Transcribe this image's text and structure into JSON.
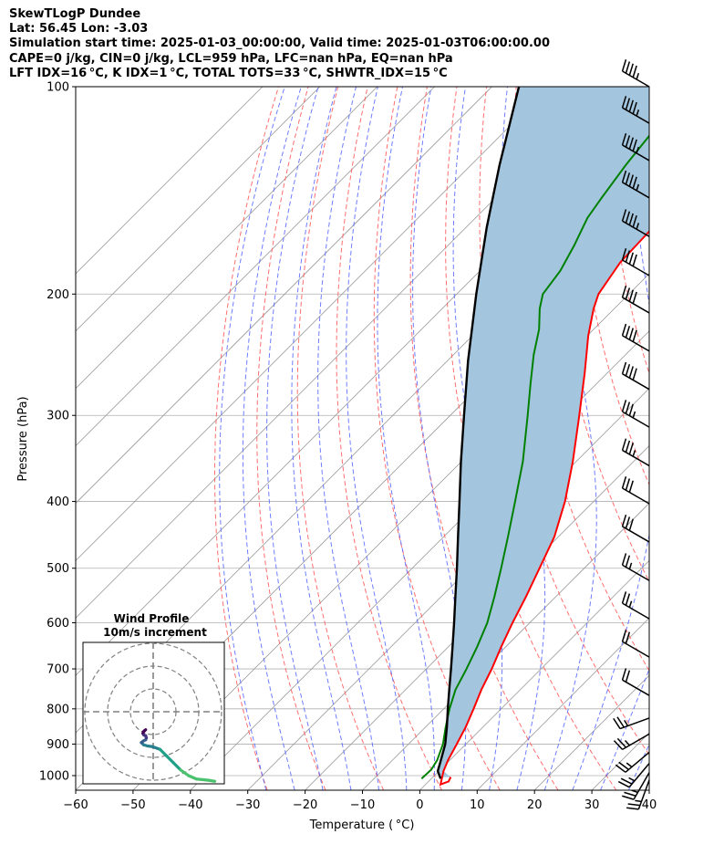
{
  "header": {
    "line1": "SkewTLogP Dundee",
    "line2": "Lat: 56.45   Lon: -3.03",
    "line3": "Simulation start time: 2025-01-03_00:00:00, Valid time: 2025-01-03T06:00:00.00",
    "line4": "CAPE=0 j/kg, CIN=0 j/kg, LCL=959 hPa, LFC=nan hPa, EQ=nan hPa",
    "line5": "LFT IDX=16 °C, K IDX=1 °C, TOTAL TOTS=33 °C, SHWTR_IDX=15 °C"
  },
  "chart_data": {
    "type": "line",
    "xlabel": "Temperature ( °C)",
    "ylabel": "Pressure (hPa)",
    "xlim": [
      -60,
      40
    ],
    "ylim": [
      1050,
      100
    ],
    "y_scale": "log",
    "x_ticks": [
      "−60",
      "−50",
      "−40",
      "−30",
      "−20",
      "−10",
      "0",
      "10",
      "20",
      "30",
      "40"
    ],
    "y_ticks": [
      "100",
      "200",
      "300",
      "400",
      "500",
      "600",
      "700",
      "800",
      "900",
      "1000"
    ],
    "grid": true,
    "colors": {
      "temperature": "#ff0000",
      "dewpoint": "#008000",
      "parcel": "#000000",
      "shade": "#a3c6de",
      "dry_adiabat": "#ff5555",
      "moist_adiabat": "#5566ff",
      "isotherm": "#999999"
    },
    "series": [
      {
        "name": "",
        "role": "temperature",
        "points": [
          [
            1005,
            3.1
          ],
          [
            1020,
            3.5
          ],
          [
            1030,
            2.6
          ],
          [
            985,
            0.8
          ],
          [
            950,
            -0.3
          ],
          [
            900,
            -1.6
          ],
          [
            850,
            -3.0
          ],
          [
            800,
            -4.8
          ],
          [
            750,
            -6.8
          ],
          [
            700,
            -8.6
          ],
          [
            650,
            -10.8
          ],
          [
            600,
            -13.0
          ],
          [
            550,
            -15.2
          ],
          [
            500,
            -17.8
          ],
          [
            450,
            -20.7
          ],
          [
            400,
            -25.0
          ],
          [
            350,
            -30.6
          ],
          [
            300,
            -37.5
          ],
          [
            260,
            -44.0
          ],
          [
            230,
            -49.8
          ],
          [
            210,
            -53.6
          ],
          [
            200,
            -55.3
          ],
          [
            180,
            -57.0
          ],
          [
            160,
            -57.4
          ],
          [
            145,
            -57.5
          ],
          [
            130,
            -57.3
          ],
          [
            120,
            -57.2
          ],
          [
            110,
            -57.3
          ],
          [
            100,
            -57.5
          ]
        ]
      },
      {
        "name": "",
        "role": "dewpoint",
        "points": [
          [
            1000,
            -1.7
          ],
          [
            1010,
            -1.7
          ],
          [
            980,
            -1.6
          ],
          [
            950,
            -2.2
          ],
          [
            900,
            -4.0
          ],
          [
            850,
            -6.5
          ],
          [
            800,
            -9.0
          ],
          [
            750,
            -11.3
          ],
          [
            700,
            -13.0
          ],
          [
            650,
            -15.0
          ],
          [
            600,
            -17.4
          ],
          [
            550,
            -20.7
          ],
          [
            500,
            -24.5
          ],
          [
            450,
            -28.8
          ],
          [
            400,
            -33.7
          ],
          [
            350,
            -39.3
          ],
          [
            300,
            -46.5
          ],
          [
            270,
            -51.5
          ],
          [
            245,
            -56.0
          ],
          [
            225,
            -59.5
          ],
          [
            210,
            -63.0
          ],
          [
            200,
            -65.0
          ],
          [
            185,
            -66.0
          ],
          [
            170,
            -68.0
          ],
          [
            155,
            -70.5
          ],
          [
            145,
            -71.5
          ],
          [
            130,
            -73.0
          ],
          [
            118,
            -74.0
          ],
          [
            108,
            -75.5
          ],
          [
            100,
            -77.0
          ]
        ]
      },
      {
        "name": "",
        "role": "parcel",
        "points": [
          [
            1010,
            1.6
          ],
          [
            985,
            -0.2
          ],
          [
            959,
            -1.2
          ],
          [
            900,
            -3.6
          ],
          [
            850,
            -6.3
          ],
          [
            800,
            -9.3
          ],
          [
            750,
            -12.4
          ],
          [
            700,
            -15.7
          ],
          [
            650,
            -19.3
          ],
          [
            600,
            -23.2
          ],
          [
            550,
            -27.5
          ],
          [
            500,
            -32.2
          ],
          [
            450,
            -37.5
          ],
          [
            400,
            -43.4
          ],
          [
            350,
            -50.1
          ],
          [
            300,
            -57.6
          ],
          [
            250,
            -66.4
          ],
          [
            200,
            -76.6
          ],
          [
            160,
            -86.4
          ],
          [
            130,
            -95.0
          ],
          [
            100,
            -105.3
          ]
        ]
      }
    ],
    "hodograph": {
      "title": "Wind Profile",
      "subtitle": "10m/s increment",
      "rings_ms": [
        10,
        20,
        30
      ],
      "uv": [
        [
          -3.3,
          -7.9
        ],
        [
          -3.8,
          -8.3
        ],
        [
          -4.3,
          -8.8
        ],
        [
          -4.5,
          -9.5
        ],
        [
          -4.1,
          -10.2
        ],
        [
          -3.3,
          -10.5
        ],
        [
          -3.0,
          -11.5
        ],
        [
          -3.3,
          -12.3
        ],
        [
          -4.3,
          -12.8
        ],
        [
          -5.2,
          -13.5
        ],
        [
          -4.2,
          -14.5
        ],
        [
          -2.5,
          -15.0
        ],
        [
          -0.3,
          -15.3
        ],
        [
          3.0,
          -16.5
        ],
        [
          6.0,
          -19.5
        ],
        [
          9.0,
          -22.5
        ],
        [
          12.0,
          -25.5
        ],
        [
          15.5,
          -28.0
        ],
        [
          19.0,
          -29.5
        ],
        [
          24.0,
          -30.0
        ],
        [
          27.0,
          -30.5
        ]
      ]
    },
    "wind_barbs": [
      {
        "p": 100,
        "speed_kt": 45,
        "from_deg": 300
      },
      {
        "p": 113,
        "speed_kt": 45,
        "from_deg": 300
      },
      {
        "p": 128,
        "speed_kt": 45,
        "from_deg": 300
      },
      {
        "p": 145,
        "speed_kt": 45,
        "from_deg": 300
      },
      {
        "p": 165,
        "speed_kt": 45,
        "from_deg": 300
      },
      {
        "p": 188,
        "speed_kt": 40,
        "from_deg": 300
      },
      {
        "p": 213,
        "speed_kt": 40,
        "from_deg": 300
      },
      {
        "p": 242,
        "speed_kt": 40,
        "from_deg": 300
      },
      {
        "p": 275,
        "speed_kt": 40,
        "from_deg": 300
      },
      {
        "p": 312,
        "speed_kt": 35,
        "from_deg": 300
      },
      {
        "p": 355,
        "speed_kt": 35,
        "from_deg": 300
      },
      {
        "p": 403,
        "speed_kt": 30,
        "from_deg": 300
      },
      {
        "p": 458,
        "speed_kt": 30,
        "from_deg": 300
      },
      {
        "p": 521,
        "speed_kt": 25,
        "from_deg": 300
      },
      {
        "p": 592,
        "speed_kt": 25,
        "from_deg": 300
      },
      {
        "p": 673,
        "speed_kt": 20,
        "from_deg": 300
      },
      {
        "p": 765,
        "speed_kt": 20,
        "from_deg": 300
      },
      {
        "p": 825,
        "speed_kt": 25,
        "from_deg": 250
      },
      {
        "p": 870,
        "speed_kt": 25,
        "from_deg": 240
      },
      {
        "p": 925,
        "speed_kt": 25,
        "from_deg": 230
      },
      {
        "p": 960,
        "speed_kt": 25,
        "from_deg": 220
      },
      {
        "p": 990,
        "speed_kt": 25,
        "from_deg": 210
      },
      {
        "p": 1015,
        "speed_kt": 25,
        "from_deg": 200
      }
    ]
  }
}
